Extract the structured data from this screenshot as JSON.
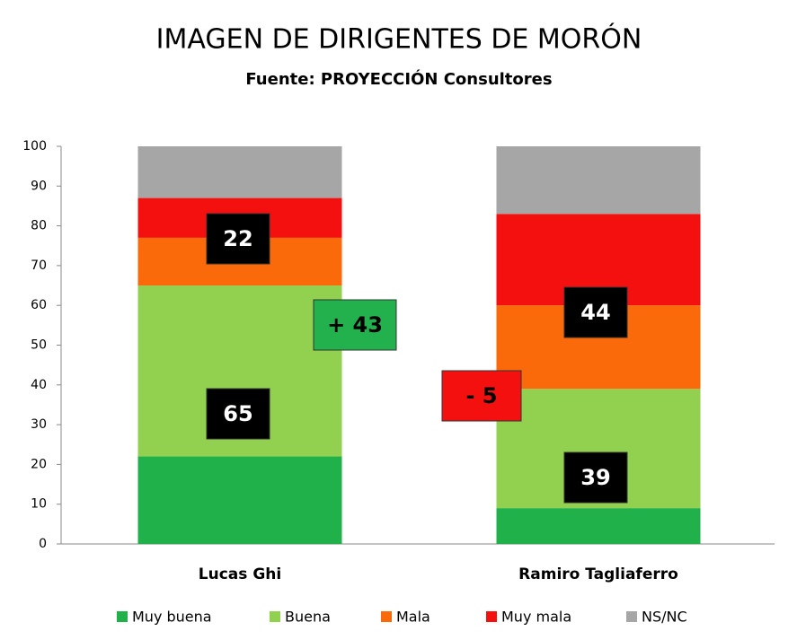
{
  "chart_data": {
    "type": "stacked_bar",
    "title": "IMAGEN DE DIRIGENTES DE MORÓN",
    "subtitle": "Fuente: PROYECCIÓN Consultores",
    "categories": [
      "Lucas Ghi",
      "Ramiro Tagliaferro"
    ],
    "series": [
      {
        "name": "Muy buena",
        "color": "#21b14b",
        "values": [
          22,
          9
        ]
      },
      {
        "name": "Buena",
        "color": "#92d050",
        "values": [
          43,
          30
        ]
      },
      {
        "name": "Mala",
        "color": "#fa6a0a",
        "values": [
          12,
          21
        ]
      },
      {
        "name": "Muy mala",
        "color": "#f51010",
        "values": [
          10,
          23
        ]
      },
      {
        "name": "NS/NC",
        "color": "#a6a6a6",
        "values": [
          13,
          17
        ]
      }
    ],
    "ylim": [
      0,
      100
    ],
    "yticks": [
      0,
      10,
      20,
      30,
      40,
      50,
      60,
      70,
      80,
      90,
      100
    ],
    "annotations": [
      {
        "text": "22",
        "color": "#000000"
      },
      {
        "text": "65",
        "color": "#000000"
      },
      {
        "text": "+ 43",
        "color": "#22b14c"
      },
      {
        "text": "- 5",
        "color": "#f51010"
      },
      {
        "text": "44",
        "color": "#000000"
      },
      {
        "text": "39",
        "color": "#000000"
      }
    ]
  }
}
